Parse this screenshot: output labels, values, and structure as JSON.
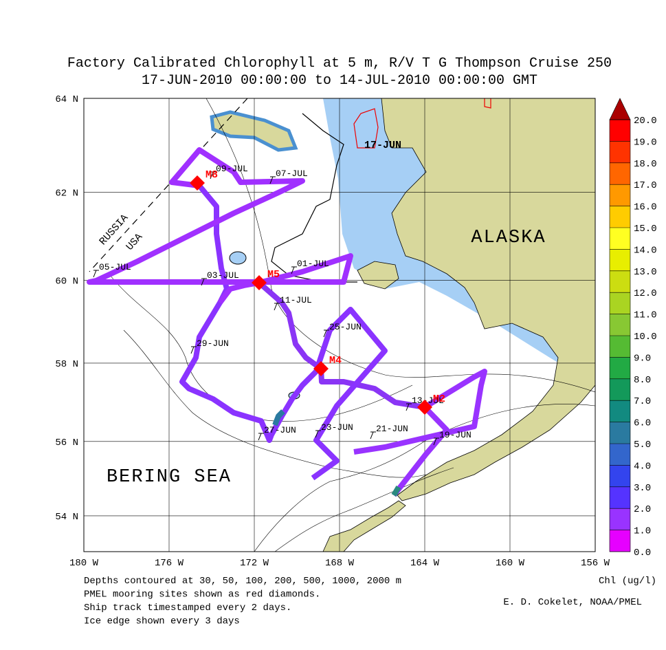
{
  "title": "Factory Calibrated Chlorophyll at 5 m, R/V T G Thompson Cruise 250",
  "subtitle": "17-JUN-2010 00:00:00 to 14-JUL-2010 00:00:00 GMT",
  "map": {
    "lonlim": [
      -180,
      -156
    ],
    "latlim": [
      53,
      64
    ],
    "lon_ticks": [
      {
        "value": -180,
        "label": "180 W"
      },
      {
        "value": -176,
        "label": "176 W"
      },
      {
        "value": -172,
        "label": "172 W"
      },
      {
        "value": -168,
        "label": "168 W"
      },
      {
        "value": -164,
        "label": "164 W"
      },
      {
        "value": -160,
        "label": "160 W"
      },
      {
        "value": -156,
        "label": "156 W"
      }
    ],
    "lat_ticks": [
      {
        "value": 64,
        "label": "64 N"
      },
      {
        "value": 62,
        "label": "62 N"
      },
      {
        "value": 60,
        "label": "60 N"
      },
      {
        "value": 58,
        "label": "58 N"
      },
      {
        "value": 56,
        "label": "56 N"
      },
      {
        "value": 54,
        "label": "54 N"
      }
    ],
    "regions": [
      "ALASKA",
      "BERING SEA"
    ],
    "border_labels": [
      "RUSSIA",
      "USA"
    ],
    "ice_label": "17-JUN",
    "moorings": [
      "M8",
      "M5",
      "M4",
      "M2"
    ],
    "track_dates": [
      "05-JUL",
      "09-JUL",
      "07-JUL",
      "03-JUL",
      "01-JUL",
      "11-JUL",
      "25-JUN",
      "29-JUN",
      "27-JUN",
      "23-JUN",
      "21-JUN",
      "13-JUL",
      "19-JUN"
    ]
  },
  "colorbar": {
    "label": "Chl (ug/l)",
    "ticks": [
      {
        "value": 0,
        "label": "0.0"
      },
      {
        "value": 1,
        "label": "1.0"
      },
      {
        "value": 2,
        "label": "2.0"
      },
      {
        "value": 3,
        "label": "3.0"
      },
      {
        "value": 4,
        "label": "4.0"
      },
      {
        "value": 5,
        "label": "5.0"
      },
      {
        "value": 6,
        "label": "6.0"
      },
      {
        "value": 7,
        "label": "7.0"
      },
      {
        "value": 8,
        "label": "8.0"
      },
      {
        "value": 9,
        "label": "9.0"
      },
      {
        "value": 10,
        "label": "10.0"
      },
      {
        "value": 11,
        "label": "11.0"
      },
      {
        "value": 12,
        "label": "12.0"
      },
      {
        "value": 13,
        "label": "13.0"
      },
      {
        "value": 14,
        "label": "14.0"
      },
      {
        "value": 15,
        "label": "15.0"
      },
      {
        "value": 16,
        "label": "16.0"
      },
      {
        "value": 17,
        "label": "17.0"
      },
      {
        "value": 18,
        "label": "18.0"
      },
      {
        "value": 19,
        "label": "19.0"
      },
      {
        "value": 20,
        "label": "20.0"
      }
    ],
    "colors": [
      "#e600ff",
      "#9933ff",
      "#5533ff",
      "#3344ee",
      "#3366cc",
      "#2a7aa0",
      "#128a80",
      "#13995a",
      "#22aa44",
      "#55bb33",
      "#88c833",
      "#aad422",
      "#ccdd11",
      "#e8ee00",
      "#ffff22",
      "#ffcc00",
      "#ff9900",
      "#ff6600",
      "#ff3300",
      "#ff0000"
    ],
    "over_color": "#aa0000"
  },
  "notes": [
    "Depths contoured at 30, 50, 100, 200, 500, 1000, 2000 m",
    "PMEL mooring sites shown as red diamonds.",
    "Ship track timestamped every 2 days.",
    "Ice edge shown every 3 days"
  ],
  "credit": "E. D. Cokelet, NOAA/PMEL"
}
